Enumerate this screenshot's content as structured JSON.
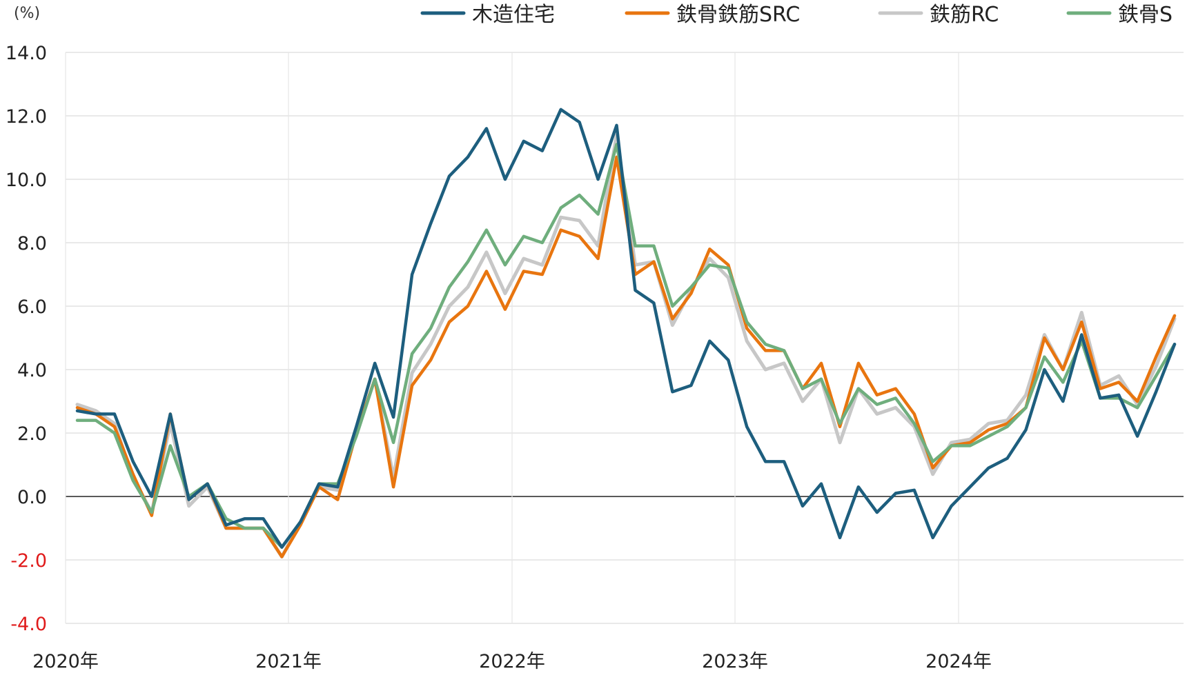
{
  "chart_data": {
    "type": "line",
    "unit_label": "(%)",
    "ylim": [
      -4.0,
      14.0
    ],
    "y_ticks": [
      "14.0",
      "12.0",
      "10.0",
      "8.0",
      "6.0",
      "4.0",
      "2.0",
      "0.0",
      "-2.0",
      "-4.0"
    ],
    "x_ticks": [
      "2020年",
      "2021年",
      "2022年",
      "2023年",
      "2024年"
    ],
    "grid": true,
    "legend_position": "top",
    "series": [
      {
        "name": "木造住宅",
        "color": "#1d5e7e",
        "values": [
          2.7,
          2.6,
          2.6,
          1.1,
          0.0,
          2.6,
          -0.1,
          0.4,
          -0.9,
          -0.7,
          -0.7,
          -1.6,
          -0.8,
          0.4,
          0.3,
          2.2,
          4.2,
          2.5,
          7.0,
          8.6,
          10.1,
          10.7,
          11.6,
          10.0,
          11.2,
          10.9,
          12.2,
          11.8,
          10.0,
          11.7,
          6.5,
          6.1,
          3.3,
          3.5,
          4.9,
          4.3,
          2.2,
          1.1,
          1.1,
          -0.3,
          0.4,
          -1.3,
          0.3,
          -0.5,
          0.1,
          0.2,
          -1.3,
          -0.3,
          0.3,
          0.9,
          1.2,
          2.1,
          4.0,
          3.0,
          5.1,
          3.1,
          3.2,
          1.9,
          3.3,
          4.8
        ]
      },
      {
        "name": "鉄骨鉄筋SRC",
        "color": "#e8750f",
        "values": [
          2.8,
          2.6,
          2.2,
          0.7,
          -0.6,
          2.6,
          -0.1,
          0.4,
          -1.0,
          -1.0,
          -1.0,
          -1.9,
          -0.9,
          0.3,
          -0.1,
          2.0,
          3.7,
          0.3,
          3.5,
          4.3,
          5.5,
          6.0,
          7.1,
          5.9,
          7.1,
          7.0,
          8.4,
          8.2,
          7.5,
          10.7,
          7.0,
          7.4,
          5.6,
          6.4,
          7.8,
          7.3,
          5.3,
          4.6,
          4.6,
          3.4,
          4.2,
          2.2,
          4.2,
          3.2,
          3.4,
          2.6,
          0.9,
          1.6,
          1.7,
          2.1,
          2.3,
          2.8,
          5.0,
          4.0,
          5.5,
          3.4,
          3.6,
          3.0,
          4.4,
          5.7
        ]
      },
      {
        "name": "鉄筋RC",
        "color": "#c7c7c7",
        "values": [
          2.9,
          2.7,
          2.3,
          0.6,
          -0.5,
          2.3,
          -0.3,
          0.3,
          -1.0,
          -1.0,
          -1.0,
          -1.9,
          -0.8,
          0.3,
          0.2,
          2.0,
          3.7,
          0.6,
          3.9,
          4.8,
          6.0,
          6.6,
          7.7,
          6.4,
          7.5,
          7.3,
          8.8,
          8.7,
          7.9,
          11.4,
          7.3,
          7.4,
          5.4,
          6.5,
          7.5,
          6.9,
          4.9,
          4.0,
          4.2,
          3.0,
          3.7,
          1.7,
          3.4,
          2.6,
          2.8,
          2.2,
          0.7,
          1.7,
          1.8,
          2.3,
          2.4,
          3.2,
          5.1,
          4.0,
          5.8,
          3.5,
          3.8,
          2.9,
          4.1,
          5.6
        ]
      },
      {
        "name": "鉄骨S",
        "color": "#6fae7d",
        "values": [
          2.4,
          2.4,
          2.0,
          0.5,
          -0.5,
          1.6,
          0.0,
          0.4,
          -0.7,
          -1.0,
          -1.0,
          -1.6,
          -0.8,
          0.4,
          0.4,
          1.9,
          3.7,
          1.7,
          4.5,
          5.3,
          6.6,
          7.4,
          8.4,
          7.3,
          8.2,
          8.0,
          9.1,
          9.5,
          8.9,
          11.1,
          7.9,
          7.9,
          6.0,
          6.6,
          7.3,
          7.2,
          5.5,
          4.8,
          4.6,
          3.4,
          3.7,
          2.3,
          3.4,
          2.9,
          3.1,
          2.3,
          1.1,
          1.6,
          1.6,
          1.9,
          2.2,
          2.8,
          4.4,
          3.6,
          4.9,
          3.1,
          3.1,
          2.8,
          3.8,
          4.8
        ]
      }
    ]
  }
}
